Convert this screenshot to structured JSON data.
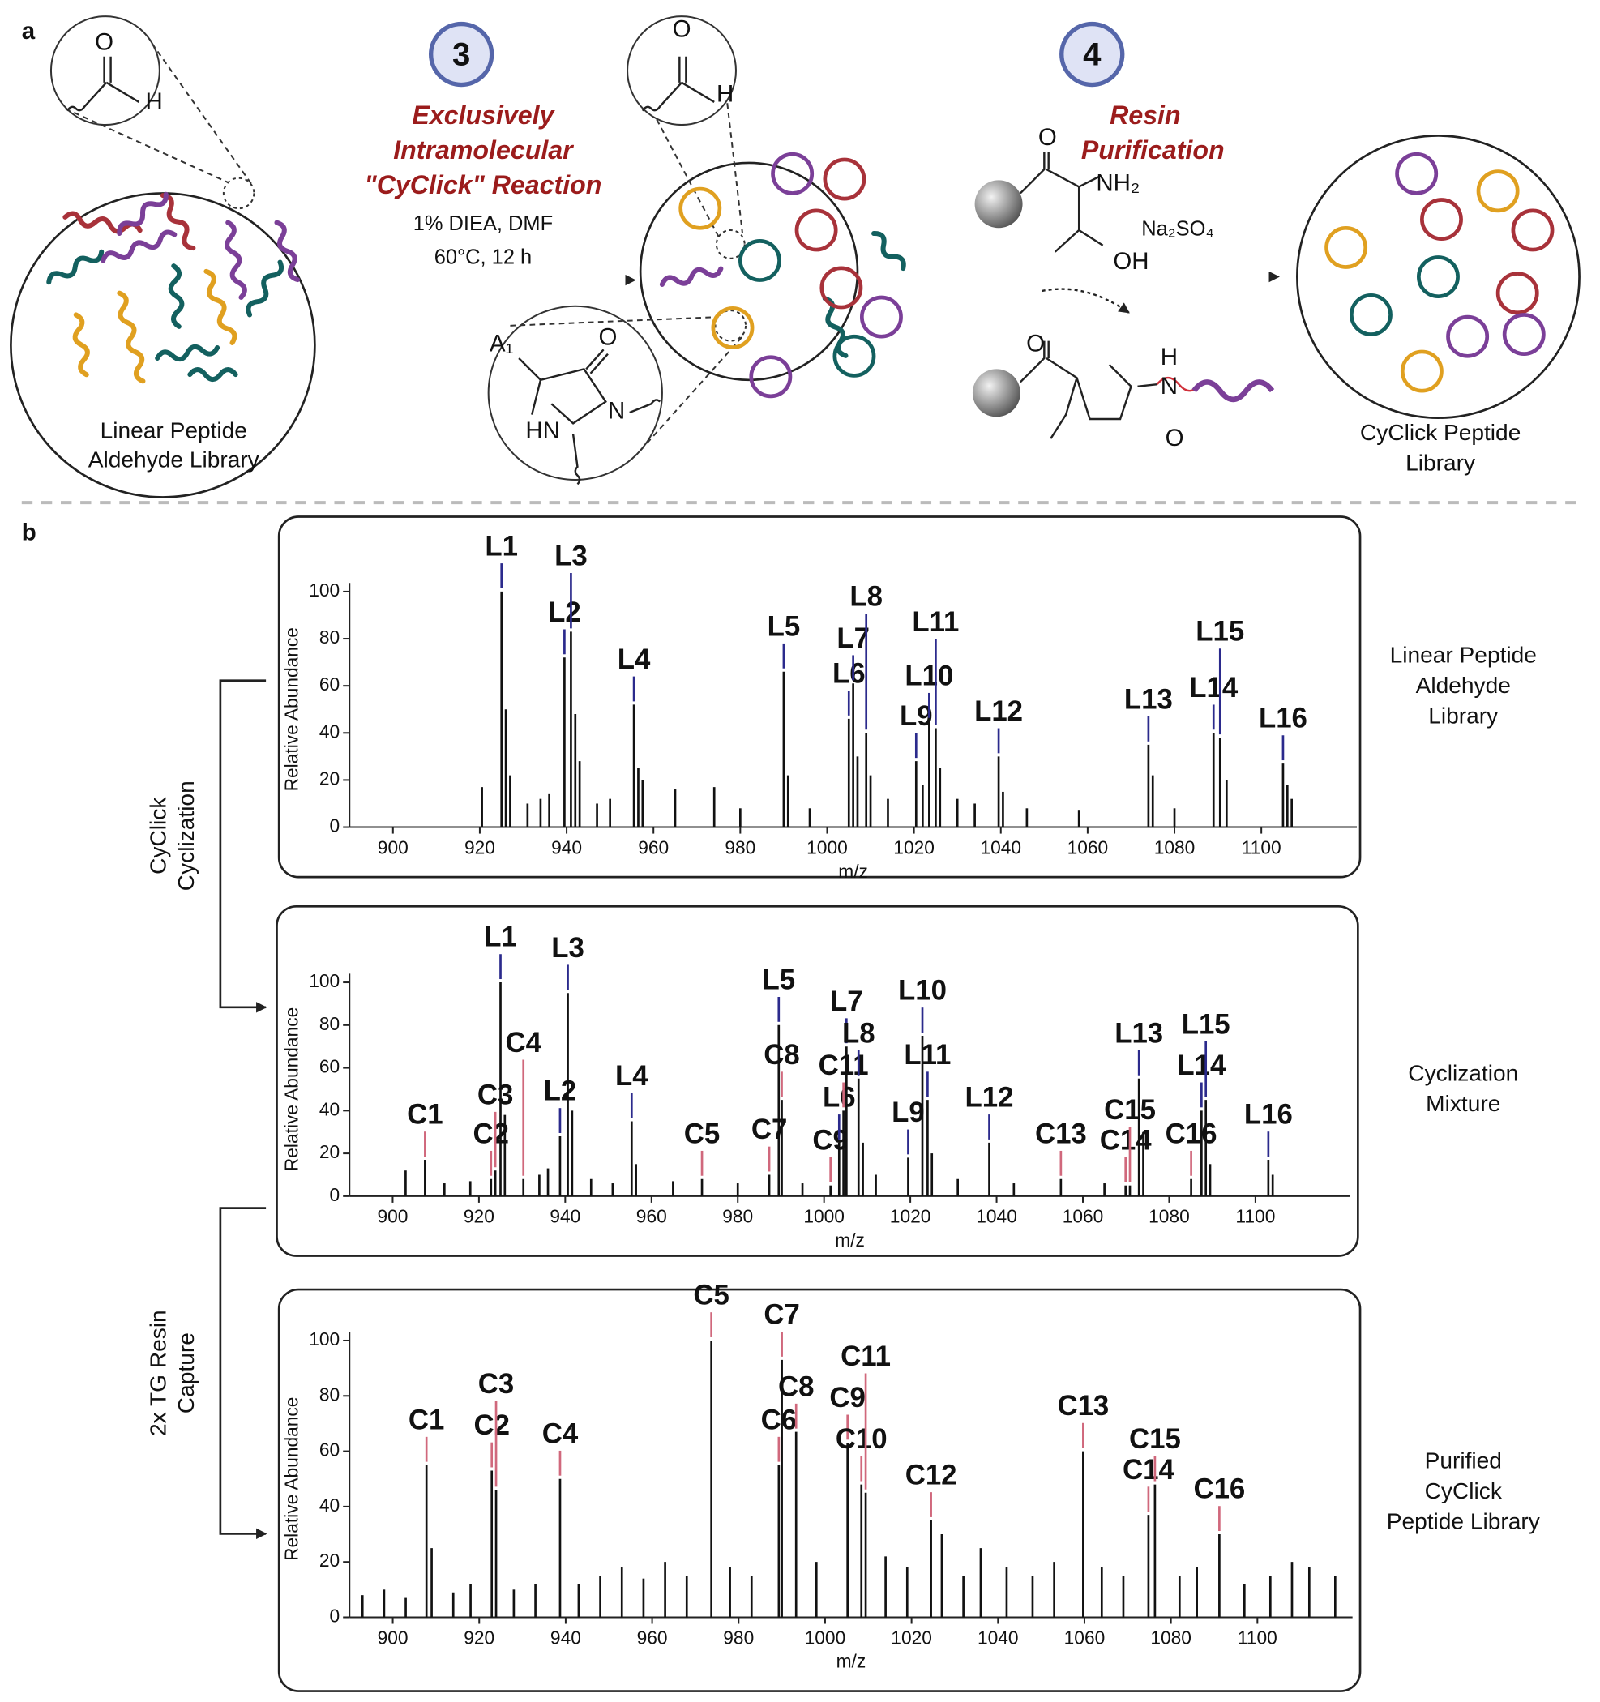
{
  "figure": {
    "panel_a_label": "a",
    "panel_b_label": "b",
    "step3": {
      "number": "3",
      "title_lines": [
        "Exclusively",
        "Intramolecular",
        "\"CyClick\" Reaction"
      ],
      "conditions": [
        "1% DIEA, DMF",
        "60°C, 12 h"
      ]
    },
    "step4": {
      "number": "4",
      "title_lines": [
        "Resin",
        "Purification"
      ],
      "reagent": "Na₂SO₄"
    },
    "start_label": [
      "Linear Peptide",
      "Aldehyde Library"
    ],
    "end_label": [
      "CyClick Peptide",
      "Library"
    ],
    "chem_labels": [
      "O",
      "H",
      "O",
      "H",
      "A₁",
      "O",
      "N",
      "HN",
      "O",
      "NH₂",
      "OH",
      "O",
      "H",
      "N",
      "O"
    ],
    "transitions": [
      [
        "CyClick",
        "Cyclization"
      ],
      [
        "2x TG Resin",
        "Capture"
      ]
    ],
    "sample_names": [
      [
        "Linear Peptide",
        "Aldehyde",
        "Library"
      ],
      [
        "Cyclization",
        "Mixture"
      ],
      [
        "Purified",
        "CyClick",
        "Peptide Library"
      ]
    ]
  },
  "chart_data": [
    {
      "type": "stem",
      "x_label": "m/z",
      "y_label": "Relative Abundance",
      "color": "#111111",
      "xlim": [
        890,
        1122
      ],
      "xticks": [
        900,
        920,
        940,
        960,
        980,
        1000,
        1020,
        1040,
        1060,
        1080,
        1100
      ],
      "ylim": [
        0,
        100
      ],
      "yticks": [
        0,
        20,
        40,
        60,
        80,
        100
      ],
      "peaks": [
        {
          "x": 920.5,
          "value": 17
        },
        {
          "x": 925,
          "value": 100,
          "label": "L1",
          "label_color": "#2b2a8c"
        },
        {
          "x": 926,
          "value": 50
        },
        {
          "x": 927,
          "value": 22
        },
        {
          "x": 931,
          "value": 10
        },
        {
          "x": 934,
          "value": 12
        },
        {
          "x": 936,
          "value": 14
        },
        {
          "x": 939.5,
          "value": 72,
          "label": "L2",
          "label_color": "#2b2a8c"
        },
        {
          "x": 941,
          "value": 83,
          "label": "L3",
          "label_color": "#2b2a8c"
        },
        {
          "x": 942,
          "value": 48
        },
        {
          "x": 943,
          "value": 28
        },
        {
          "x": 947,
          "value": 10
        },
        {
          "x": 950,
          "value": 12
        },
        {
          "x": 955.5,
          "value": 52,
          "label": "L4",
          "label_color": "#2b2a8c"
        },
        {
          "x": 956.5,
          "value": 25
        },
        {
          "x": 957.5,
          "value": 20
        },
        {
          "x": 965,
          "value": 16
        },
        {
          "x": 974,
          "value": 17
        },
        {
          "x": 980,
          "value": 8
        },
        {
          "x": 990,
          "value": 66,
          "label": "L5",
          "label_color": "#2b2a8c"
        },
        {
          "x": 991,
          "value": 22
        },
        {
          "x": 996,
          "value": 8
        },
        {
          "x": 1005,
          "value": 46,
          "label": "L6",
          "label_color": "#2b2a8c"
        },
        {
          "x": 1006,
          "value": 61,
          "label": "L7",
          "label_color": "#2b2a8c"
        },
        {
          "x": 1007,
          "value": 30
        },
        {
          "x": 1009,
          "value": 40,
          "label": "L8",
          "label_color": "#2b2a8c"
        },
        {
          "x": 1010,
          "value": 22
        },
        {
          "x": 1014,
          "value": 12
        },
        {
          "x": 1020.5,
          "value": 28,
          "label": "L9",
          "label_color": "#2b2a8c"
        },
        {
          "x": 1022,
          "value": 18
        },
        {
          "x": 1023.5,
          "value": 45,
          "label": "L10",
          "label_color": "#2b2a8c"
        },
        {
          "x": 1025,
          "value": 42,
          "label": "L11",
          "label_color": "#2b2a8c"
        },
        {
          "x": 1026,
          "value": 25
        },
        {
          "x": 1030,
          "value": 12
        },
        {
          "x": 1034,
          "value": 10
        },
        {
          "x": 1039.5,
          "value": 30,
          "label": "L12",
          "label_color": "#2b2a8c"
        },
        {
          "x": 1040.5,
          "value": 15
        },
        {
          "x": 1046,
          "value": 8
        },
        {
          "x": 1058,
          "value": 7
        },
        {
          "x": 1074,
          "value": 35,
          "label": "L13",
          "label_color": "#2b2a8c"
        },
        {
          "x": 1075,
          "value": 22
        },
        {
          "x": 1080,
          "value": 8
        },
        {
          "x": 1089,
          "value": 40,
          "label": "L14",
          "label_color": "#2b2a8c"
        },
        {
          "x": 1090.5,
          "value": 38,
          "label": "L15",
          "label_color": "#2b2a8c"
        },
        {
          "x": 1092,
          "value": 20
        },
        {
          "x": 1105,
          "value": 27,
          "label": "L16",
          "label_color": "#2b2a8c"
        },
        {
          "x": 1106,
          "value": 18
        },
        {
          "x": 1107,
          "value": 12
        }
      ]
    },
    {
      "type": "stem",
      "x_label": "m/z",
      "y_label": "Relative Abundance",
      "color": "#111111",
      "xlim": [
        890,
        1122
      ],
      "xticks": [
        900,
        920,
        940,
        960,
        980,
        1000,
        1020,
        1040,
        1060,
        1080,
        1100
      ],
      "ylim": [
        0,
        100
      ],
      "yticks": [
        0,
        20,
        40,
        60,
        80,
        100
      ],
      "peaks": [
        {
          "x": 903,
          "value": 12
        },
        {
          "x": 907.5,
          "value": 17,
          "label": "C1",
          "label_color": "#d0687c"
        },
        {
          "x": 912,
          "value": 6
        },
        {
          "x": 918,
          "value": 7
        },
        {
          "x": 922.8,
          "value": 8,
          "label": "C2",
          "label_color": "#d0687c"
        },
        {
          "x": 923.8,
          "value": 12,
          "label": "C3",
          "label_color": "#d0687c"
        },
        {
          "x": 925,
          "value": 100,
          "label": "L1",
          "label_color": "#2b2a8c"
        },
        {
          "x": 926,
          "value": 38
        },
        {
          "x": 930.3,
          "value": 8,
          "label": "C4",
          "label_color": "#d0687c"
        },
        {
          "x": 934,
          "value": 10
        },
        {
          "x": 936,
          "value": 13
        },
        {
          "x": 938.8,
          "value": 28,
          "label": "L2",
          "label_color": "#2b2a8c"
        },
        {
          "x": 940.6,
          "value": 95,
          "label": "L3",
          "label_color": "#2b2a8c"
        },
        {
          "x": 941.6,
          "value": 40
        },
        {
          "x": 946,
          "value": 8
        },
        {
          "x": 951,
          "value": 6
        },
        {
          "x": 955.4,
          "value": 35,
          "label": "L4",
          "label_color": "#2b2a8c"
        },
        {
          "x": 956.4,
          "value": 15
        },
        {
          "x": 965,
          "value": 7
        },
        {
          "x": 971.7,
          "value": 8,
          "label": "C5",
          "label_color": "#d0687c"
        },
        {
          "x": 980,
          "value": 6
        },
        {
          "x": 987.3,
          "value": 10,
          "label": "C7",
          "label_color": "#d0687c"
        },
        {
          "x": 989.5,
          "value": 80,
          "label": "L5",
          "label_color": "#2b2a8c"
        },
        {
          "x": 990.2,
          "value": 45,
          "label": "C8",
          "label_color": "#d0687c"
        },
        {
          "x": 995,
          "value": 6
        },
        {
          "x": 1001.5,
          "value": 5,
          "label": "C9",
          "label_color": "#d0687c"
        },
        {
          "x": 1003.5,
          "value": 25,
          "label": "L6",
          "label_color": "#2b2a8c"
        },
        {
          "x": 1004.5,
          "value": 40,
          "label": "C11",
          "label_color": "#d0687c"
        },
        {
          "x": 1005.2,
          "value": 70,
          "label": "L7",
          "label_color": "#2b2a8c"
        },
        {
          "x": 1008,
          "value": 55,
          "label": "L8",
          "label_color": "#2b2a8c"
        },
        {
          "x": 1009,
          "value": 25
        },
        {
          "x": 1012,
          "value": 10
        },
        {
          "x": 1019.5,
          "value": 18,
          "label": "L9",
          "label_color": "#2b2a8c"
        },
        {
          "x": 1022.8,
          "value": 75,
          "label": "L10",
          "label_color": "#2b2a8c"
        },
        {
          "x": 1024,
          "value": 45,
          "label": "L11",
          "label_color": "#2b2a8c"
        },
        {
          "x": 1025,
          "value": 20
        },
        {
          "x": 1031,
          "value": 8
        },
        {
          "x": 1038.3,
          "value": 25,
          "label": "L12",
          "label_color": "#2b2a8c"
        },
        {
          "x": 1044,
          "value": 6
        },
        {
          "x": 1054.9,
          "value": 8,
          "label": "C13",
          "label_color": "#d0687c"
        },
        {
          "x": 1065,
          "value": 6
        },
        {
          "x": 1069.9,
          "value": 5,
          "label": "C14",
          "label_color": "#d0687c"
        },
        {
          "x": 1070.9,
          "value": 5,
          "label": "C15",
          "label_color": "#d0687c"
        },
        {
          "x": 1073,
          "value": 55,
          "label": "L13",
          "label_color": "#2b2a8c"
        },
        {
          "x": 1074,
          "value": 30
        },
        {
          "x": 1085.1,
          "value": 8,
          "label": "C16",
          "label_color": "#d0687c"
        },
        {
          "x": 1087.5,
          "value": 40,
          "label": "L14",
          "label_color": "#2b2a8c"
        },
        {
          "x": 1088.5,
          "value": 45,
          "label": "L15",
          "label_color": "#2b2a8c"
        },
        {
          "x": 1089.5,
          "value": 15
        },
        {
          "x": 1103,
          "value": 17,
          "label": "L16",
          "label_color": "#2b2a8c"
        },
        {
          "x": 1104,
          "value": 10
        }
      ]
    },
    {
      "type": "stem",
      "x_label": "m/z",
      "y_label": "Relative Abundance",
      "color": "#111111",
      "xlim": [
        890,
        1122
      ],
      "xticks": [
        900,
        920,
        940,
        960,
        980,
        1000,
        1020,
        1040,
        1060,
        1080,
        1100
      ],
      "ylim": [
        0,
        100
      ],
      "yticks": [
        0,
        20,
        40,
        60,
        80,
        100
      ],
      "peaks": [
        {
          "x": 893,
          "value": 8
        },
        {
          "x": 898,
          "value": 10
        },
        {
          "x": 903,
          "value": 7
        },
        {
          "x": 907.8,
          "value": 55,
          "label": "C1",
          "label_color": "#d0687c"
        },
        {
          "x": 909,
          "value": 25
        },
        {
          "x": 914,
          "value": 9
        },
        {
          "x": 918,
          "value": 12
        },
        {
          "x": 922.9,
          "value": 53,
          "label": "C2",
          "label_color": "#d0687c"
        },
        {
          "x": 923.9,
          "value": 46,
          "label": "C3",
          "label_color": "#d0687c"
        },
        {
          "x": 928,
          "value": 10
        },
        {
          "x": 933,
          "value": 12
        },
        {
          "x": 938.7,
          "value": 50,
          "label": "C4",
          "label_color": "#d0687c"
        },
        {
          "x": 943,
          "value": 12
        },
        {
          "x": 948,
          "value": 15
        },
        {
          "x": 953,
          "value": 18
        },
        {
          "x": 958,
          "value": 14
        },
        {
          "x": 963,
          "value": 20
        },
        {
          "x": 968,
          "value": 15
        },
        {
          "x": 973.7,
          "value": 100,
          "label": "C5",
          "label_color": "#d0687c"
        },
        {
          "x": 978,
          "value": 18
        },
        {
          "x": 983,
          "value": 15
        },
        {
          "x": 989.3,
          "value": 55,
          "label": "C6",
          "label_color": "#d0687c"
        },
        {
          "x": 990,
          "value": 93,
          "label": "C7",
          "label_color": "#d0687c"
        },
        {
          "x": 993.3,
          "value": 67,
          "label": "C8",
          "label_color": "#d0687c"
        },
        {
          "x": 998,
          "value": 20
        },
        {
          "x": 1005.2,
          "value": 63,
          "label": "C9",
          "label_color": "#d0687c"
        },
        {
          "x": 1008.4,
          "value": 48,
          "label": "C10",
          "label_color": "#d0687c"
        },
        {
          "x": 1009.4,
          "value": 45,
          "label": "C11",
          "label_color": "#d0687c"
        },
        {
          "x": 1014,
          "value": 22
        },
        {
          "x": 1019,
          "value": 18
        },
        {
          "x": 1024.5,
          "value": 35,
          "label": "C12",
          "label_color": "#d0687c"
        },
        {
          "x": 1027,
          "value": 30
        },
        {
          "x": 1032,
          "value": 15
        },
        {
          "x": 1036,
          "value": 25
        },
        {
          "x": 1042,
          "value": 18
        },
        {
          "x": 1048,
          "value": 15
        },
        {
          "x": 1053,
          "value": 20
        },
        {
          "x": 1059.7,
          "value": 60,
          "label": "C13",
          "label_color": "#d0687c"
        },
        {
          "x": 1064,
          "value": 18
        },
        {
          "x": 1069,
          "value": 15
        },
        {
          "x": 1074.8,
          "value": 37,
          "label": "C14",
          "label_color": "#d0687c"
        },
        {
          "x": 1076.3,
          "value": 48,
          "label": "C15",
          "label_color": "#d0687c"
        },
        {
          "x": 1082,
          "value": 15
        },
        {
          "x": 1086,
          "value": 18
        },
        {
          "x": 1091.2,
          "value": 30,
          "label": "C16",
          "label_color": "#d0687c"
        },
        {
          "x": 1097,
          "value": 12
        },
        {
          "x": 1103,
          "value": 15
        },
        {
          "x": 1108,
          "value": 20
        },
        {
          "x": 1112,
          "value": 18
        },
        {
          "x": 1118,
          "value": 15
        }
      ]
    }
  ]
}
